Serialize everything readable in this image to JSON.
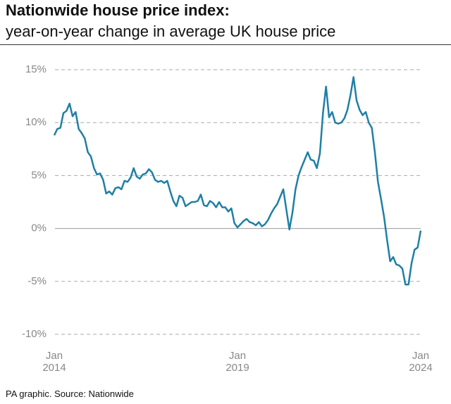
{
  "chart_data": {
    "type": "line",
    "title": "Nationwide house price index:",
    "subtitle": "year-on-year change in average UK house price",
    "source": "PA graphic. Source: Nationwide",
    "color": "#1f7fa6",
    "x": [
      "2014-01",
      "2014-02",
      "2014-03",
      "2014-04",
      "2014-05",
      "2014-06",
      "2014-07",
      "2014-08",
      "2014-09",
      "2014-10",
      "2014-11",
      "2014-12",
      "2015-01",
      "2015-02",
      "2015-03",
      "2015-04",
      "2015-05",
      "2015-06",
      "2015-07",
      "2015-08",
      "2015-09",
      "2015-10",
      "2015-11",
      "2015-12",
      "2016-01",
      "2016-02",
      "2016-03",
      "2016-04",
      "2016-05",
      "2016-06",
      "2016-07",
      "2016-08",
      "2016-09",
      "2016-10",
      "2016-11",
      "2016-12",
      "2017-01",
      "2017-02",
      "2017-03",
      "2017-04",
      "2017-05",
      "2017-06",
      "2017-07",
      "2017-08",
      "2017-09",
      "2017-10",
      "2017-11",
      "2017-12",
      "2018-01",
      "2018-02",
      "2018-03",
      "2018-04",
      "2018-05",
      "2018-06",
      "2018-07",
      "2018-08",
      "2018-09",
      "2018-10",
      "2018-11",
      "2018-12",
      "2019-01",
      "2019-02",
      "2019-03",
      "2019-04",
      "2019-05",
      "2019-06",
      "2019-07",
      "2019-08",
      "2019-09",
      "2019-10",
      "2019-11",
      "2019-12",
      "2020-01",
      "2020-02",
      "2020-03",
      "2020-04",
      "2020-05",
      "2020-06",
      "2020-07",
      "2020-08",
      "2020-09",
      "2020-10",
      "2020-11",
      "2020-12",
      "2021-01",
      "2021-02",
      "2021-03",
      "2021-04",
      "2021-05",
      "2021-06",
      "2021-07",
      "2021-08",
      "2021-09",
      "2021-10",
      "2021-11",
      "2021-12",
      "2022-01",
      "2022-02",
      "2022-03",
      "2022-04",
      "2022-05",
      "2022-06",
      "2022-07",
      "2022-08",
      "2022-09",
      "2022-10",
      "2022-11",
      "2022-12",
      "2023-01",
      "2023-02",
      "2023-03",
      "2023-04",
      "2023-05",
      "2023-06",
      "2023-07",
      "2023-08",
      "2023-09",
      "2023-10",
      "2023-11",
      "2023-12",
      "2024-01"
    ],
    "values": [
      8.8,
      9.4,
      9.5,
      10.9,
      11.1,
      11.8,
      10.6,
      11.0,
      9.4,
      9.0,
      8.5,
      7.2,
      6.8,
      5.7,
      5.1,
      5.2,
      4.6,
      3.3,
      3.5,
      3.2,
      3.8,
      3.9,
      3.7,
      4.5,
      4.4,
      4.8,
      5.7,
      4.9,
      4.7,
      5.1,
      5.2,
      5.6,
      5.3,
      4.6,
      4.4,
      4.5,
      4.3,
      4.5,
      3.5,
      2.6,
      2.1,
      3.1,
      2.9,
      2.1,
      2.3,
      2.5,
      2.5,
      2.6,
      3.2,
      2.2,
      2.1,
      2.6,
      2.4,
      2.0,
      2.5,
      2.0,
      2.0,
      1.6,
      1.9,
      0.5,
      0.1,
      0.4,
      0.7,
      0.9,
      0.6,
      0.5,
      0.3,
      0.6,
      0.2,
      0.4,
      0.8,
      1.4,
      1.9,
      2.3,
      3.0,
      3.7,
      1.8,
      -0.1,
      1.5,
      3.7,
      5.0,
      5.8,
      6.5,
      7.2,
      6.5,
      6.4,
      5.7,
      7.1,
      10.9,
      13.4,
      10.5,
      11.0,
      10.0,
      9.9,
      10.0,
      10.4,
      11.2,
      12.6,
      14.3,
      12.1,
      11.2,
      10.7,
      11.0,
      10.0,
      9.5,
      7.2,
      4.4,
      2.8,
      1.1,
      -1.1,
      -3.1,
      -2.7,
      -3.4,
      -3.5,
      -3.8,
      -5.3,
      -5.3,
      -3.3,
      -2.0,
      -1.8,
      -0.2
    ],
    "ylim": [
      -10,
      15
    ],
    "yticks": [
      {
        "value": 15,
        "label": "15%"
      },
      {
        "value": 10,
        "label": "10%"
      },
      {
        "value": 5,
        "label": "5%"
      },
      {
        "value": 0,
        "label": "0%"
      },
      {
        "value": -5,
        "label": "-5%"
      },
      {
        "value": -10,
        "label": "-10%"
      }
    ],
    "xticks": [
      {
        "value": "2014-01",
        "label": "Jan 2014"
      },
      {
        "value": "2019-01",
        "label": "Jan 2019"
      },
      {
        "value": "2024-01",
        "label": "Jan 2024"
      }
    ],
    "grid": true
  }
}
